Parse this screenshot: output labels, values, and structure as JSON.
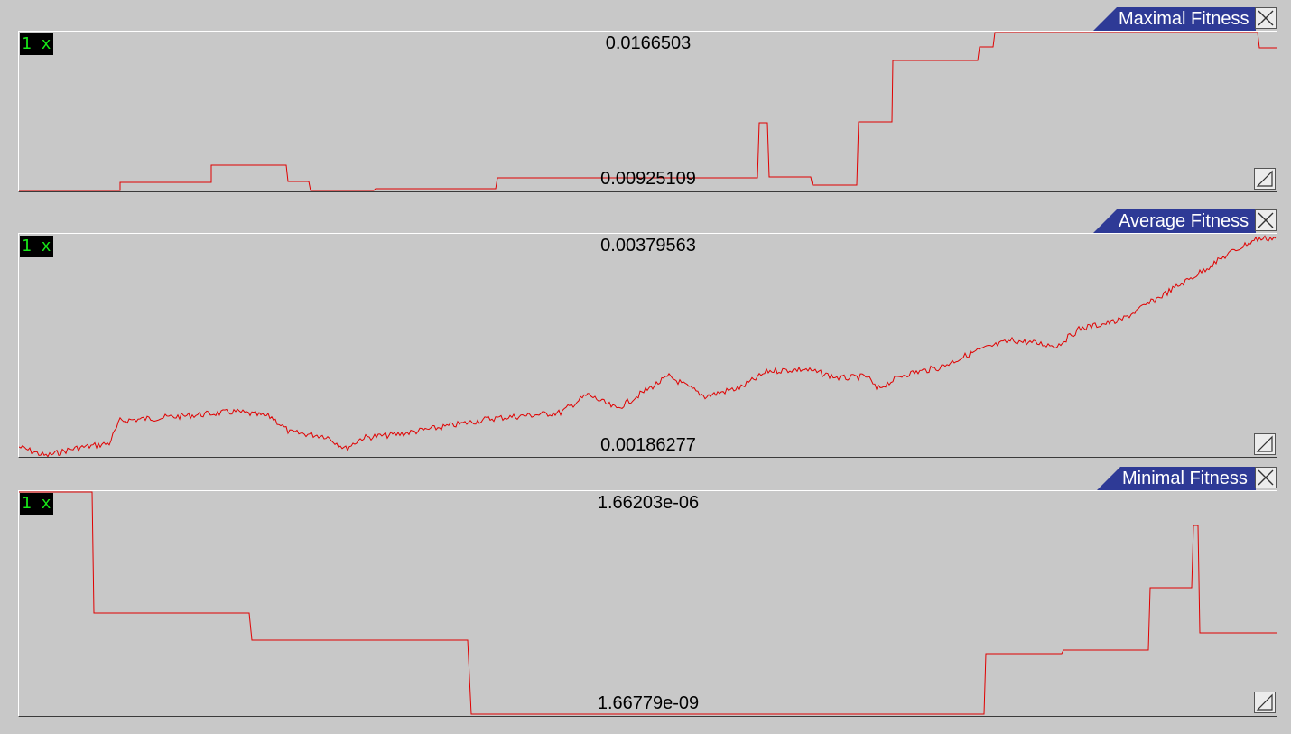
{
  "line_color": "#e00000",
  "title_tab_color": "#2e3a96",
  "zoom_badge_text_color": "#18e818",
  "panels": [
    {
      "title": "Maximal Fitness",
      "zoom_label": "1 x",
      "max_value": "0.0166503",
      "min_value": "0.00925109",
      "close_icon": "close-x-icon",
      "resize_icon": "resize-grip-icon"
    },
    {
      "title": "Average Fitness",
      "zoom_label": "1 x",
      "max_value": "0.00379563",
      "min_value": "0.00186277",
      "close_icon": "close-x-icon",
      "resize_icon": "resize-grip-icon"
    },
    {
      "title": "Minimal Fitness",
      "zoom_label": "1 x",
      "max_value": "1.66203e-06",
      "min_value": "1.66779e-09",
      "close_icon": "close-x-icon",
      "resize_icon": "resize-grip-icon"
    }
  ]
}
